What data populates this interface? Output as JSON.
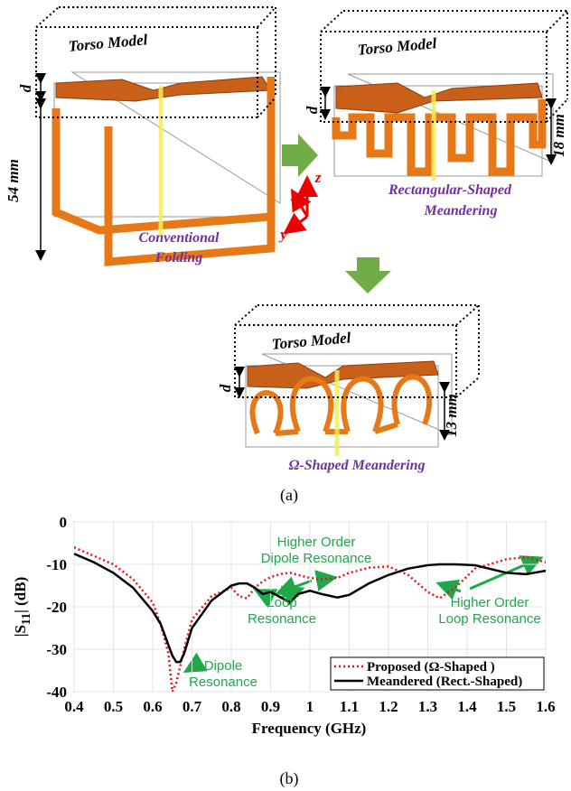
{
  "figure_a": {
    "torso": [
      "Torso Model",
      "Torso Model",
      "Torso Model"
    ],
    "d": [
      "d",
      "d",
      "d"
    ],
    "dims": [
      "54 mm",
      "18 mm",
      "13 mm"
    ],
    "captions": [
      [
        "Conventional",
        "Folding"
      ],
      [
        "Rectangular-Shaped",
        "Meandering"
      ],
      [
        "Ω-Shaped Meandering"
      ]
    ],
    "axes": [
      "x",
      "y",
      "z"
    ]
  },
  "panel_labels": [
    "(a)",
    "(b)"
  ],
  "chart_data": {
    "type": "line",
    "xlabel": "Frequency (GHz)",
    "ylabel": {
      "pre": "|S",
      "sub": "11",
      "post": "| (dB)"
    },
    "x": [
      0.4,
      0.45,
      0.5,
      0.55,
      0.6,
      0.62,
      0.64,
      0.65,
      0.66,
      0.67,
      0.68,
      0.7,
      0.75,
      0.8,
      0.82,
      0.84,
      0.86,
      0.88,
      0.9,
      0.93,
      0.95,
      0.97,
      1.0,
      1.03,
      1.07,
      1.1,
      1.15,
      1.2,
      1.25,
      1.3,
      1.33,
      1.37,
      1.42,
      1.5,
      1.55,
      1.6
    ],
    "series": [
      {
        "name": "Proposed (Ω-Shaped )",
        "color": "#e8141b",
        "dash": "dotted",
        "values": [
          -6,
          -8,
          -10,
          -13.5,
          -19,
          -24,
          -31,
          -40,
          -38,
          -34,
          -30,
          -23,
          -17.5,
          -15.5,
          -17.5,
          -18,
          -15.5,
          -14,
          -13,
          -12.2,
          -12,
          -12.5,
          -13.2,
          -13.5,
          -13.2,
          -12,
          -10.8,
          -10.5,
          -12.5,
          -16.5,
          -18,
          -15.5,
          -11,
          -8.8,
          -8.3,
          -9.5
        ]
      },
      {
        "name": "Meandered (Rect.-Shaped)",
        "color": "#000000",
        "dash": "solid",
        "values": [
          -7.5,
          -9.5,
          -12,
          -15.5,
          -21,
          -24,
          -29,
          -31.5,
          -33,
          -33,
          -31,
          -25,
          -18.5,
          -15,
          -14.5,
          -14.5,
          -15.5,
          -17,
          -16.5,
          -18,
          -19,
          -17,
          -16.2,
          -17,
          -17.8,
          -17.2,
          -14.5,
          -12.5,
          -11,
          -10.2,
          -10,
          -10,
          -10.2,
          -12,
          -12.3,
          -11.5
        ]
      }
    ],
    "xlim": [
      0.4,
      1.6
    ],
    "ylim": [
      -40,
      0
    ],
    "xticks": [
      0.4,
      0.5,
      0.6,
      0.7,
      0.8,
      0.9,
      1,
      1.1,
      1.2,
      1.3,
      1.4,
      1.5,
      1.6
    ],
    "yticks": [
      -40,
      -30,
      -20,
      -10,
      0
    ],
    "grid": true,
    "legend": "lower right",
    "annotations": [
      [
        "Higher Order",
        "Dipole Resonance"
      ],
      [
        "Loop",
        "Resonance"
      ],
      [
        "Dipole",
        "Resonance"
      ],
      [
        "Higher Order",
        "Loop Resonance"
      ]
    ]
  }
}
